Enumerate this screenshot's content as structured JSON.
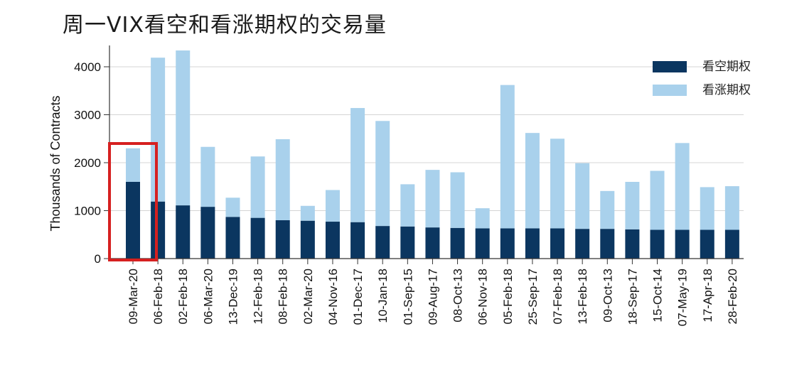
{
  "chart_data": {
    "type": "bar",
    "stacked": true,
    "title": "周一VIX看空和看涨期权的交易量",
    "ylabel": "Thousands of Contracts",
    "xlabel": "",
    "ylim": [
      0,
      4400
    ],
    "yticks": [
      0,
      1000,
      2000,
      3000,
      4000
    ],
    "grid": true,
    "legend_position": "top-right",
    "categories": [
      "09-Mar-20",
      "06-Feb-18",
      "02-Feb-18",
      "06-Mar-20",
      "13-Dec-19",
      "12-Feb-18",
      "08-Feb-18",
      "02-Mar-20",
      "04-Nov-16",
      "01-Dec-17",
      "10-Jan-18",
      "01-Sep-15",
      "09-Aug-17",
      "08-Oct-13",
      "06-Nov-18",
      "05-Feb-18",
      "25-Sep-17",
      "07-Feb-18",
      "13-Feb-18",
      "09-Oct-13",
      "18-Sep-17",
      "15-Oct-14",
      "07-May-19",
      "17-Apr-18",
      "28-Feb-20"
    ],
    "series": [
      {
        "name": "看空期权",
        "color": "#0b3660",
        "values": [
          1600,
          1190,
          1110,
          1080,
          870,
          850,
          800,
          790,
          770,
          760,
          680,
          670,
          650,
          640,
          630,
          630,
          630,
          630,
          620,
          620,
          610,
          600,
          600,
          600,
          600
        ]
      },
      {
        "name": "看涨期权",
        "color": "#a9d1ec",
        "values": [
          700,
          3000,
          3230,
          1250,
          400,
          1280,
          1690,
          310,
          660,
          2380,
          2190,
          880,
          1200,
          1160,
          420,
          2990,
          1990,
          1870,
          1370,
          790,
          990,
          1230,
          1810,
          890,
          910
        ]
      }
    ],
    "highlight": {
      "category": "09-Mar-20",
      "color": "#d62020"
    }
  }
}
